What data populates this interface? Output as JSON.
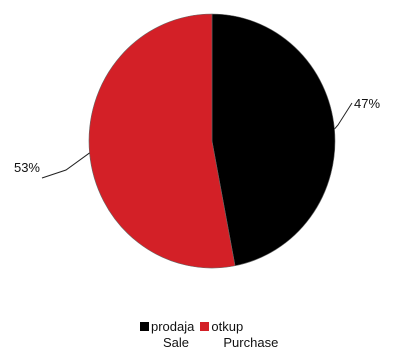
{
  "chart_data": {
    "type": "pie",
    "title": "",
    "series": [
      {
        "name": "prodaja",
        "name_en": "Sale",
        "value": 47,
        "label": "47%",
        "color": "#000000"
      },
      {
        "name": "otkup",
        "name_en": "Purchase",
        "value": 53,
        "label": "53%",
        "color": "#d32027"
      }
    ],
    "legend_position": "bottom"
  }
}
